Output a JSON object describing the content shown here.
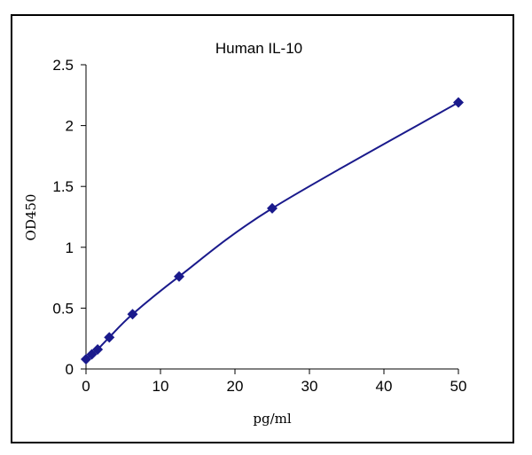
{
  "chart_data": {
    "type": "line",
    "title": "Human IL-10",
    "xlabel": "pg/ml",
    "ylabel": "OD450",
    "xlim": [
      0,
      50
    ],
    "ylim": [
      0,
      2.5
    ],
    "x_ticks": [
      0,
      10,
      20,
      30,
      40,
      50
    ],
    "y_ticks": [
      0,
      0.5,
      1,
      1.5,
      2,
      2.5
    ],
    "x_tick_labels": [
      "0",
      "10",
      "20",
      "30",
      "40",
      "50"
    ],
    "y_tick_labels": [
      "0",
      "0.5",
      "1",
      "1.5",
      "2",
      "2.5"
    ],
    "grid": false,
    "series": [
      {
        "x": [
          0,
          0.78,
          1.56,
          3.125,
          6.25,
          12.5,
          25,
          50
        ],
        "y": [
          0.08,
          0.12,
          0.16,
          0.26,
          0.45,
          0.76,
          1.32,
          2.19
        ]
      }
    ],
    "colors": {
      "line": "#1a1a8c",
      "marker": "#1a1a8c",
      "axis": "#000000"
    },
    "marker": "diamond"
  }
}
